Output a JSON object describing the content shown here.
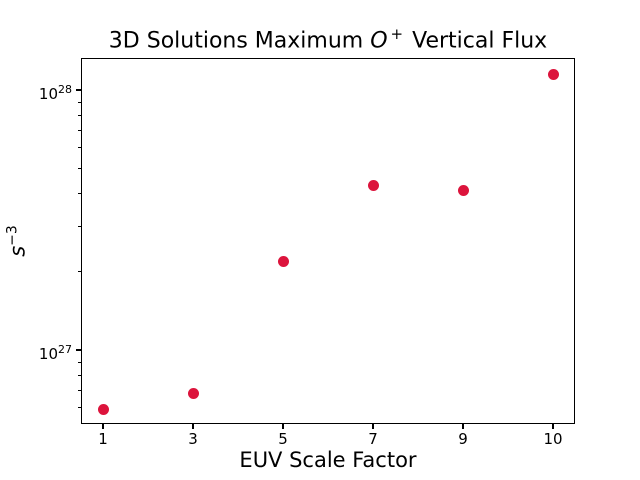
{
  "figure": {
    "title": {
      "pre": "3D Solutions Maximum ",
      "math": "O",
      "sup": "+",
      "post": " Vertical Flux"
    },
    "xlabel": "EUV Scale Factor",
    "ylabel": {
      "math": "s",
      "sup": "−3"
    }
  },
  "chart_data": {
    "type": "scatter",
    "title": "3D Solutions Maximum O⁺ Vertical Flux",
    "xlabel": "EUV Scale Factor",
    "ylabel": "s⁻³",
    "x": [
      1,
      3,
      5,
      7,
      9,
      10
    ],
    "y": [
      5.9e+26,
      6.8e+26,
      2.2e+27,
      4.3e+27,
      4.1e+27,
      1.15e+28
    ],
    "x_tick_labels": [
      "1",
      "3",
      "5",
      "7",
      "9",
      "10"
    ],
    "x_spacing": "even",
    "yscale": "log",
    "ylim": [
      5.2e+26,
      1.33e+28
    ],
    "y_ticks": [
      {
        "base": "10",
        "exp": "27",
        "value": 1e+27
      },
      {
        "base": "10",
        "exp": "28",
        "value": 1e+28
      }
    ],
    "marker_color": "#DC143C",
    "marker_size_px": 11,
    "grid": false,
    "legend": "none"
  }
}
